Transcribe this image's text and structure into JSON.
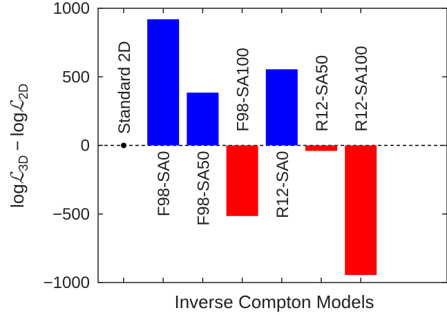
{
  "chart_data": {
    "type": "bar",
    "xlabel": "Inverse Compton Models",
    "ylabel_main": "log",
    "ylabel_l": "ℒ",
    "ylabel_sub3": "3D",
    "ylabel_minus": "−",
    "ylabel_sub2": "2D",
    "ylim": [
      -1000,
      1000
    ],
    "yticks": [
      1000,
      500,
      0,
      -500,
      -1000
    ],
    "ytick_labels": [
      "1000",
      "500",
      "0",
      "−500",
      "−1000"
    ],
    "grid": false,
    "reference": {
      "label": "Standard 2D",
      "value": 0
    },
    "categories": [
      "F98-SA0",
      "F98-SA50",
      "F98-SA100",
      "R12-SA0",
      "R12-SA50",
      "R12-SA100"
    ],
    "values": [
      920,
      385,
      -515,
      555,
      -40,
      -945
    ],
    "colors": {
      "positive": "#0000ff",
      "negative": "#ff0000",
      "axis": "#222222"
    }
  }
}
